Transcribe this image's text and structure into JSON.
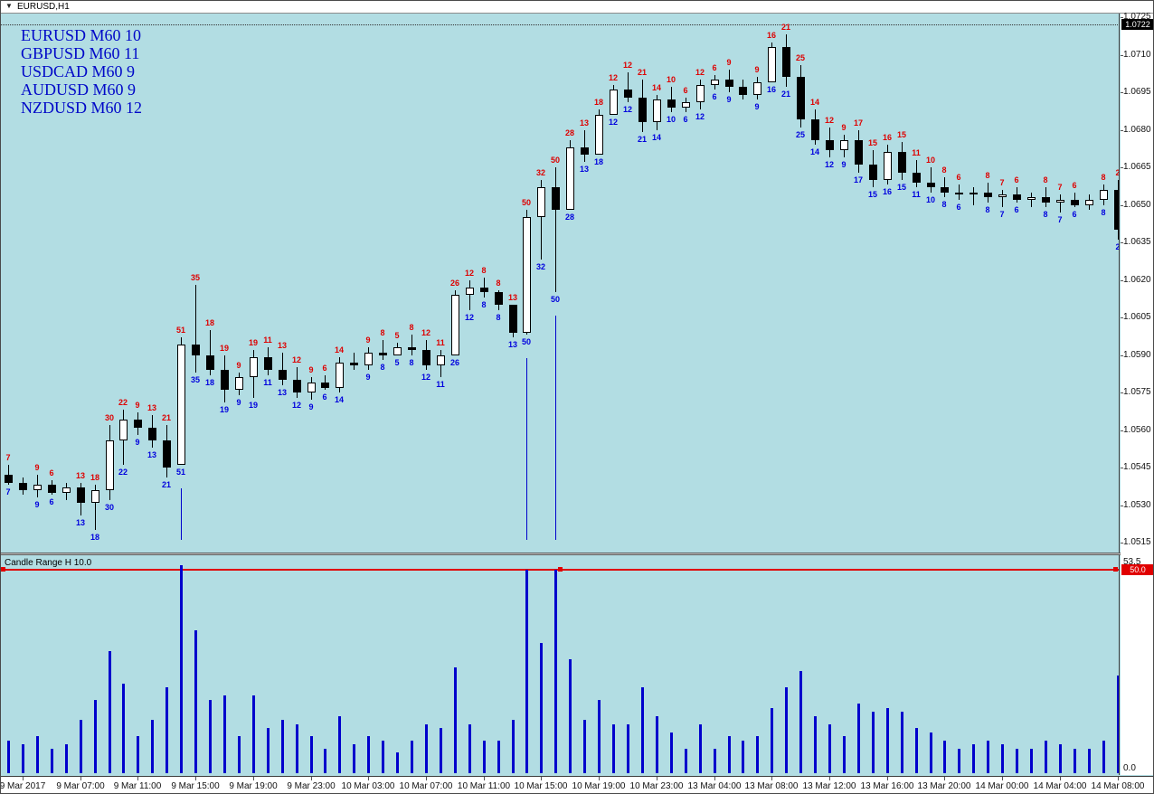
{
  "window": {
    "title": "EURUSD,H1"
  },
  "icons": {
    "window_marker": "▼"
  },
  "watermark": {
    "lines": [
      "EURUSD M60 10",
      "GBPUSD M60 11",
      "USDCAD M60 9",
      "AUDUSD M60 9",
      "NZDUSD M60 12"
    ]
  },
  "colors": {
    "background": "#b2dde3",
    "bull_candle": "#ffffff",
    "bear_candle": "#000000",
    "range_label_above": "#dd0000",
    "range_label_below": "#0000dd",
    "histogram": "#0000cc",
    "level_line": "#e00000",
    "watermark_text": "#0008c8"
  },
  "chart_data": {
    "type": "candlestick",
    "symbol": "EURUSD",
    "timeframe": "H1",
    "price_axis": {
      "labels": [
        "1.0725",
        "1.0710",
        "1.0695",
        "1.0680",
        "1.0665",
        "1.0650",
        "1.0635",
        "1.0620",
        "1.0605",
        "1.0590",
        "1.0575",
        "1.0560",
        "1.0545",
        "1.0530",
        "1.0515"
      ],
      "badge": "1.0722",
      "badge_price": 1.0722,
      "dashed_line_price": 1.0722,
      "min": 1.0515,
      "max": 1.0725
    },
    "time_axis": {
      "labels": [
        {
          "text": "9 Mar 2017",
          "i": 1
        },
        {
          "text": "9 Mar 07:00",
          "i": 5
        },
        {
          "text": "9 Mar 11:00",
          "i": 9
        },
        {
          "text": "9 Mar 15:00",
          "i": 13
        },
        {
          "text": "9 Mar 19:00",
          "i": 17
        },
        {
          "text": "9 Mar 23:00",
          "i": 21
        },
        {
          "text": "10 Mar 03:00",
          "i": 25
        },
        {
          "text": "10 Mar 07:00",
          "i": 29
        },
        {
          "text": "10 Mar 11:00",
          "i": 33
        },
        {
          "text": "10 Mar 15:00",
          "i": 37
        },
        {
          "text": "10 Mar 19:00",
          "i": 41
        },
        {
          "text": "10 Mar 23:00",
          "i": 45
        },
        {
          "text": "13 Mar 04:00",
          "i": 49
        },
        {
          "text": "13 Mar 08:00",
          "i": 53
        },
        {
          "text": "13 Mar 12:00",
          "i": 57
        },
        {
          "text": "13 Mar 16:00",
          "i": 61
        },
        {
          "text": "13 Mar 20:00",
          "i": 65
        },
        {
          "text": "14 Mar 00:00",
          "i": 69
        },
        {
          "text": "14 Mar 04:00",
          "i": 73
        },
        {
          "text": "14 Mar 08:00",
          "i": 77
        }
      ]
    },
    "candles": [
      [
        1.0542,
        1.0546,
        1.0538,
        1.0539,
        7
      ],
      [
        1.0539,
        1.0541,
        1.0534,
        1.0536,
        null
      ],
      [
        1.0536,
        1.0542,
        1.0533,
        1.0538,
        9
      ],
      [
        1.0538,
        1.054,
        1.0534,
        1.0535,
        6
      ],
      [
        1.0535,
        1.0539,
        1.0532,
        1.0537,
        null
      ],
      [
        1.0537,
        1.0539,
        1.0526,
        1.0531,
        13
      ],
      [
        1.0531,
        1.0538,
        1.052,
        1.0536,
        18
      ],
      [
        1.0536,
        1.0562,
        1.0532,
        1.0556,
        30
      ],
      [
        1.0556,
        1.0568,
        1.0546,
        1.0564,
        22
      ],
      [
        1.0564,
        1.0567,
        1.0558,
        1.0561,
        9
      ],
      [
        1.0561,
        1.0566,
        1.0553,
        1.0556,
        13
      ],
      [
        1.0556,
        1.0562,
        1.0541,
        1.0545,
        21
      ],
      [
        1.0546,
        1.0597,
        1.0546,
        1.0594,
        51
      ],
      [
        1.0594,
        1.0618,
        1.0583,
        1.059,
        35
      ],
      [
        1.059,
        1.06,
        1.0582,
        1.0584,
        18
      ],
      [
        1.0584,
        1.059,
        1.0571,
        1.0576,
        19
      ],
      [
        1.0576,
        1.0583,
        1.0574,
        1.0581,
        9
      ],
      [
        1.0581,
        1.0592,
        1.0573,
        1.0589,
        19
      ],
      [
        1.0589,
        1.0593,
        1.0582,
        1.0584,
        11
      ],
      [
        1.0584,
        1.0591,
        1.0578,
        1.058,
        13
      ],
      [
        1.058,
        1.0585,
        1.0573,
        1.0575,
        12
      ],
      [
        1.0575,
        1.0581,
        1.0572,
        1.0579,
        9
      ],
      [
        1.0579,
        1.0582,
        1.0576,
        1.0577,
        6
      ],
      [
        1.0577,
        1.0589,
        1.0575,
        1.0587,
        14
      ],
      [
        1.0587,
        1.0591,
        1.0584,
        1.0586,
        null
      ],
      [
        1.0586,
        1.0593,
        1.0584,
        1.0591,
        9
      ],
      [
        1.0591,
        1.0596,
        1.0588,
        1.059,
        8
      ],
      [
        1.059,
        1.0595,
        1.059,
        1.0593,
        5
      ],
      [
        1.0593,
        1.0598,
        1.059,
        1.0592,
        8
      ],
      [
        1.0592,
        1.0596,
        1.0584,
        1.0586,
        12
      ],
      [
        1.0586,
        1.0592,
        1.0581,
        1.059,
        11
      ],
      [
        1.059,
        1.0616,
        1.059,
        1.0614,
        26
      ],
      [
        1.0614,
        1.062,
        1.0608,
        1.0617,
        12
      ],
      [
        1.0617,
        1.0621,
        1.0613,
        1.0615,
        8
      ],
      [
        1.0615,
        1.0616,
        1.0608,
        1.061,
        8
      ],
      [
        1.061,
        1.061,
        1.0597,
        1.0599,
        13
      ],
      [
        1.0599,
        1.0648,
        1.0598,
        1.0645,
        50
      ],
      [
        1.0645,
        1.066,
        1.0628,
        1.0657,
        32
      ],
      [
        1.0657,
        1.0665,
        1.0615,
        1.0648,
        50
      ],
      [
        1.0648,
        1.0676,
        1.0648,
        1.0673,
        28
      ],
      [
        1.0673,
        1.068,
        1.0667,
        1.067,
        13
      ],
      [
        1.067,
        1.0688,
        1.067,
        1.0686,
        18
      ],
      [
        1.0686,
        1.0698,
        1.0686,
        1.0696,
        12
      ],
      [
        1.0696,
        1.0703,
        1.0691,
        1.0693,
        12
      ],
      [
        1.0693,
        1.07,
        1.0679,
        1.0683,
        21
      ],
      [
        1.0683,
        1.0694,
        1.068,
        1.0692,
        14
      ],
      [
        1.0692,
        1.0697,
        1.0687,
        1.0689,
        10
      ],
      [
        1.0689,
        1.0693,
        1.0687,
        1.0691,
        6
      ],
      [
        1.0691,
        1.07,
        1.0688,
        1.0698,
        12
      ],
      [
        1.0698,
        1.0702,
        1.0696,
        1.07,
        6
      ],
      [
        1.07,
        1.0704,
        1.0695,
        1.0697,
        9
      ],
      [
        1.0697,
        1.07,
        1.0692,
        1.0694,
        null
      ],
      [
        1.0694,
        1.0701,
        1.0692,
        1.0699,
        9
      ],
      [
        1.0699,
        1.0715,
        1.0699,
        1.0713,
        16
      ],
      [
        1.0713,
        1.0718,
        1.0697,
        1.0701,
        21
      ],
      [
        1.0701,
        1.0706,
        1.0681,
        1.0684,
        25
      ],
      [
        1.0684,
        1.0688,
        1.0674,
        1.0676,
        14
      ],
      [
        1.0676,
        1.0681,
        1.0669,
        1.0672,
        12
      ],
      [
        1.0672,
        1.0678,
        1.0669,
        1.0676,
        9
      ],
      [
        1.0676,
        1.068,
        1.0663,
        1.0666,
        17
      ],
      [
        1.0666,
        1.0672,
        1.0657,
        1.066,
        15
      ],
      [
        1.066,
        1.0674,
        1.0658,
        1.0671,
        16
      ],
      [
        1.0671,
        1.0675,
        1.066,
        1.0663,
        15
      ],
      [
        1.0663,
        1.0668,
        1.0657,
        1.0659,
        11
      ],
      [
        1.0659,
        1.0665,
        1.0655,
        1.0657,
        10
      ],
      [
        1.0657,
        1.0661,
        1.0653,
        1.0655,
        8
      ],
      [
        1.0655,
        1.0658,
        1.0652,
        1.0654,
        6
      ],
      [
        1.0654,
        1.0657,
        1.065,
        1.0655,
        null
      ],
      [
        1.0655,
        1.0659,
        1.0651,
        1.0653,
        8
      ],
      [
        1.0653,
        1.0656,
        1.0649,
        1.0654,
        7
      ],
      [
        1.0654,
        1.0657,
        1.0651,
        1.0652,
        6
      ],
      [
        1.0652,
        1.0655,
        1.0649,
        1.0653,
        null
      ],
      [
        1.0653,
        1.0657,
        1.0649,
        1.0651,
        8
      ],
      [
        1.0651,
        1.0654,
        1.0647,
        1.0652,
        7
      ],
      [
        1.0652,
        1.0655,
        1.0649,
        1.065,
        6
      ],
      [
        1.065,
        1.0654,
        1.0648,
        1.0652,
        null
      ],
      [
        1.0652,
        1.0658,
        1.065,
        1.0656,
        8
      ],
      [
        1.0656,
        1.066,
        1.0636,
        1.064,
        2
      ]
    ],
    "events": [
      12,
      36,
      38
    ],
    "indicator": {
      "title": "Candle Range H 10.0",
      "level": 50.0,
      "level_label": "50.0",
      "scale_max": 53.5,
      "scale_max_label": "53.5",
      "scale_min_label": "0.0",
      "values_source": "candle high-low range in pips"
    }
  }
}
